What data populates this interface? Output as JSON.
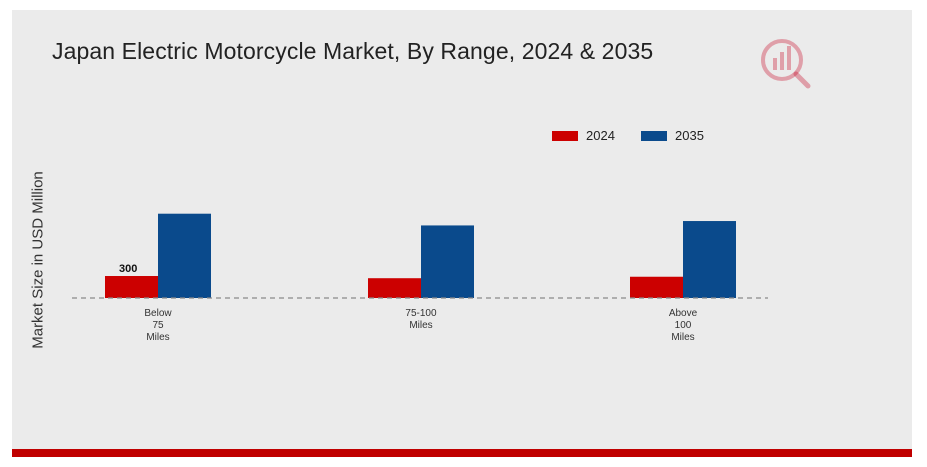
{
  "colors": {
    "series_2024": "#cc0000",
    "series_2035": "#0a4a8c",
    "baseline": "#8a8a8a",
    "bottom_bar": "#c00000",
    "logo": "#c8102e"
  },
  "logo_icon": "market-research-logo-icon",
  "chart_data": {
    "type": "bar",
    "title": "Japan Electric Motorcycle Market, By Range, 2024 & 2035",
    "xlabel": "",
    "ylabel": "Market Size in USD Million",
    "categories": [
      "Below 75 Miles",
      "75-100 Miles",
      "Above 100 Miles"
    ],
    "category_lines": [
      [
        "Below",
        "75",
        "Miles"
      ],
      [
        "75-100",
        "Miles"
      ],
      [
        "Above",
        "100",
        "Miles"
      ]
    ],
    "series": [
      {
        "name": "2024",
        "values": [
          300,
          270,
          290
        ]
      },
      {
        "name": "2035",
        "values": [
          1150,
          990,
          1050
        ]
      }
    ],
    "data_labels": [
      {
        "series": 0,
        "index": 0,
        "text": "300"
      }
    ],
    "ylim": [
      0,
      1600
    ],
    "grid": false,
    "legend_position": "top-right"
  }
}
